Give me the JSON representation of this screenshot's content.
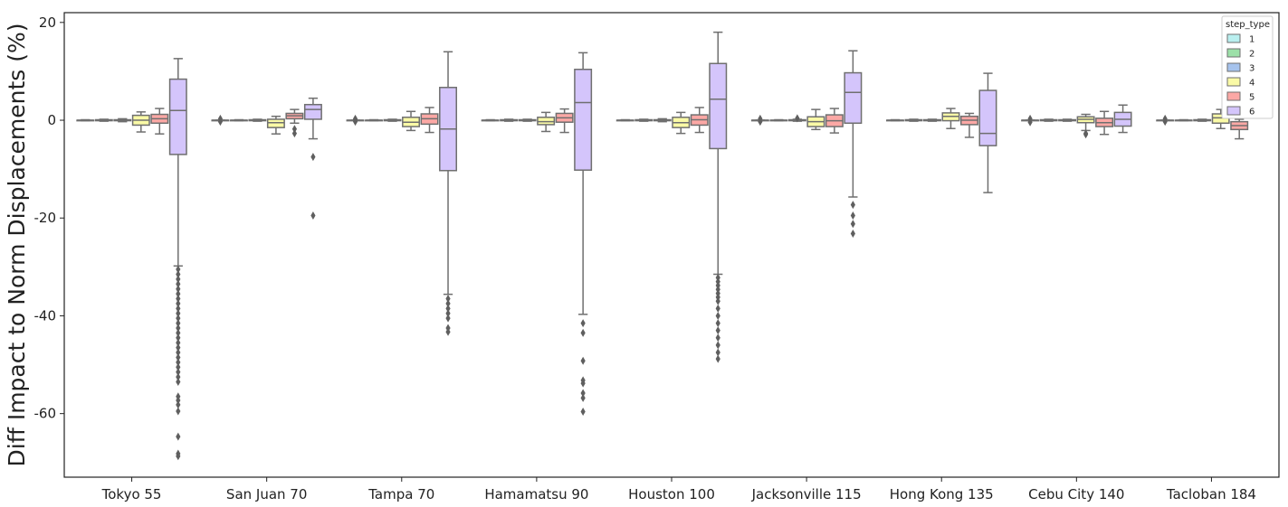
{
  "chart_data": {
    "type": "box",
    "title": "",
    "xlabel": "",
    "ylabel": "Diff Impact to Norm Displacements (%)",
    "ylim": [
      -73,
      22
    ],
    "yticks": [
      20,
      0,
      -20,
      -40,
      -60
    ],
    "categories": [
      "Tokyo 55",
      "San Juan 70",
      "Tampa 70",
      "Hamamatsu 90",
      "Houston 100",
      "Jacksonville 115",
      "Hong Kong 135",
      "Cebu City 140",
      "Tacloban 184"
    ],
    "legend": {
      "title": "step_type",
      "position": "top-right"
    },
    "series": [
      {
        "name": "1",
        "color": "#b9efef",
        "boxes": [
          {
            "q1": 0,
            "med": 0,
            "q3": 0,
            "lo": -0.1,
            "hi": 0.1,
            "fliers": []
          },
          {
            "q1": 0,
            "med": 0,
            "q3": 0,
            "lo": 0,
            "hi": 0,
            "fliers": [
              0.3,
              -0.3
            ]
          },
          {
            "q1": 0,
            "med": 0,
            "q3": 0,
            "lo": 0,
            "hi": 0,
            "fliers": [
              0.3,
              -0.3,
              0.1
            ]
          },
          {
            "q1": 0,
            "med": 0,
            "q3": 0,
            "lo": -0.1,
            "hi": 0.1,
            "fliers": []
          },
          {
            "q1": 0,
            "med": 0,
            "q3": 0,
            "lo": -0.1,
            "hi": 0.1,
            "fliers": []
          },
          {
            "q1": 0,
            "med": 0,
            "q3": 0,
            "lo": 0,
            "hi": 0,
            "fliers": [
              0.3,
              -0.3
            ]
          },
          {
            "q1": 0,
            "med": 0,
            "q3": 0,
            "lo": -0.1,
            "hi": 0.1,
            "fliers": []
          },
          {
            "q1": 0,
            "med": 0,
            "q3": 0,
            "lo": 0,
            "hi": 0,
            "fliers": [
              0.3,
              -0.4
            ]
          },
          {
            "q1": 0,
            "med": 0,
            "q3": 0,
            "lo": 0,
            "hi": 0,
            "fliers": [
              0.3,
              -0.3
            ]
          }
        ]
      },
      {
        "name": "2",
        "color": "#9ce0a8",
        "boxes": [
          {
            "q1": -0.1,
            "med": 0,
            "q3": 0.1,
            "lo": -0.2,
            "hi": 0.2,
            "fliers": []
          },
          {
            "q1": 0,
            "med": 0,
            "q3": 0,
            "lo": -0.1,
            "hi": 0.1,
            "fliers": []
          },
          {
            "q1": 0,
            "med": 0,
            "q3": 0,
            "lo": -0.1,
            "hi": 0.1,
            "fliers": []
          },
          {
            "q1": -0.1,
            "med": 0,
            "q3": 0.1,
            "lo": -0.2,
            "hi": 0.2,
            "fliers": []
          },
          {
            "q1": -0.1,
            "med": 0,
            "q3": 0.1,
            "lo": -0.2,
            "hi": 0.2,
            "fliers": []
          },
          {
            "q1": 0,
            "med": 0,
            "q3": 0,
            "lo": -0.1,
            "hi": 0.1,
            "fliers": []
          },
          {
            "q1": -0.1,
            "med": 0,
            "q3": 0.1,
            "lo": -0.2,
            "hi": 0.2,
            "fliers": []
          },
          {
            "q1": -0.1,
            "med": 0,
            "q3": 0.1,
            "lo": -0.2,
            "hi": 0.2,
            "fliers": []
          },
          {
            "q1": 0,
            "med": 0,
            "q3": 0,
            "lo": -0.1,
            "hi": 0.1,
            "fliers": []
          }
        ]
      },
      {
        "name": "3",
        "color": "#a6c3ed",
        "boxes": [
          {
            "q1": -0.1,
            "med": 0,
            "q3": 0.1,
            "lo": -0.3,
            "hi": 0.3,
            "fliers": []
          },
          {
            "q1": -0.1,
            "med": 0,
            "q3": 0.1,
            "lo": -0.2,
            "hi": 0.2,
            "fliers": []
          },
          {
            "q1": -0.1,
            "med": 0,
            "q3": 0.1,
            "lo": -0.2,
            "hi": 0.2,
            "fliers": []
          },
          {
            "q1": -0.1,
            "med": 0,
            "q3": 0.1,
            "lo": -0.2,
            "hi": 0.2,
            "fliers": []
          },
          {
            "q1": -0.1,
            "med": 0,
            "q3": 0.1,
            "lo": -0.3,
            "hi": 0.3,
            "fliers": []
          },
          {
            "q1": -0.1,
            "med": 0,
            "q3": 0.1,
            "lo": -0.2,
            "hi": 0.2,
            "fliers": [
              0.4
            ]
          },
          {
            "q1": -0.1,
            "med": 0,
            "q3": 0.1,
            "lo": -0.2,
            "hi": 0.2,
            "fliers": []
          },
          {
            "q1": -0.1,
            "med": 0,
            "q3": 0.1,
            "lo": -0.2,
            "hi": 0.2,
            "fliers": []
          },
          {
            "q1": -0.1,
            "med": 0,
            "q3": 0.1,
            "lo": -0.2,
            "hi": 0.2,
            "fliers": []
          }
        ]
      },
      {
        "name": "4",
        "color": "#fafaa6",
        "boxes": [
          {
            "q1": -1,
            "med": 0,
            "q3": 1,
            "lo": -2.4,
            "hi": 1.7,
            "fliers": []
          },
          {
            "q1": -1.5,
            "med": -0.5,
            "q3": 0.2,
            "lo": -2.8,
            "hi": 0.8,
            "fliers": []
          },
          {
            "q1": -1.3,
            "med": -0.4,
            "q3": 0.6,
            "lo": -2.1,
            "hi": 1.8,
            "fliers": []
          },
          {
            "q1": -0.9,
            "med": -0.3,
            "q3": 0.6,
            "lo": -2.3,
            "hi": 1.6,
            "fliers": []
          },
          {
            "q1": -1.5,
            "med": -0.5,
            "q3": 0.6,
            "lo": -2.7,
            "hi": 1.6,
            "fliers": []
          },
          {
            "q1": -1.3,
            "med": -0.3,
            "q3": 0.7,
            "lo": -1.9,
            "hi": 2.2,
            "fliers": []
          },
          {
            "q1": -0.1,
            "med": 0.8,
            "q3": 1.5,
            "lo": -1.7,
            "hi": 2.4,
            "fliers": []
          },
          {
            "q1": -0.5,
            "med": 0.2,
            "q3": 0.7,
            "lo": -2.1,
            "hi": 1.2,
            "fliers": [
              -2.7,
              -2.9
            ]
          },
          {
            "q1": -0.6,
            "med": 0.5,
            "q3": 1.3,
            "lo": -1.7,
            "hi": 2.2,
            "fliers": []
          }
        ]
      },
      {
        "name": "5",
        "color": "#fca8a5",
        "boxes": [
          {
            "q1": -0.6,
            "med": 0.3,
            "q3": 1.2,
            "lo": -2.8,
            "hi": 2.4,
            "fliers": []
          },
          {
            "q1": 0.3,
            "med": 0.9,
            "q3": 1.4,
            "lo": -0.6,
            "hi": 2.2,
            "fliers": [
              -1.8,
              -2.7
            ]
          },
          {
            "q1": -0.8,
            "med": 0.3,
            "q3": 1.3,
            "lo": -2.5,
            "hi": 2.6,
            "fliers": []
          },
          {
            "q1": -0.4,
            "med": 0.5,
            "q3": 1.4,
            "lo": -2.5,
            "hi": 2.3,
            "fliers": []
          },
          {
            "q1": -1,
            "med": 0.1,
            "q3": 1.1,
            "lo": -2.5,
            "hi": 2.6,
            "fliers": []
          },
          {
            "q1": -1.3,
            "med": -0.1,
            "q3": 1.1,
            "lo": -2.6,
            "hi": 2.4,
            "fliers": []
          },
          {
            "q1": -0.9,
            "med": 0,
            "q3": 0.8,
            "lo": -3.5,
            "hi": 1.4,
            "fliers": []
          },
          {
            "q1": -1.3,
            "med": -0.5,
            "q3": 0.4,
            "lo": -2.9,
            "hi": 1.8,
            "fliers": []
          },
          {
            "q1": -1.9,
            "med": -1.1,
            "q3": -0.3,
            "lo": -3.8,
            "hi": 0.2,
            "fliers": []
          }
        ]
      },
      {
        "name": "6",
        "color": "#d4c5fb",
        "boxes": [
          {
            "q1": -7,
            "med": 2,
            "q3": 8.4,
            "lo": -29.8,
            "hi": 12.6,
            "fliers": [
              -30.5,
              -31.5,
              -32.5,
              -33.5,
              -34.5,
              -35.5,
              -36.5,
              -37.5,
              -38.5,
              -39.5,
              -40.5,
              -41.5,
              -42.5,
              -43.5,
              -44.5,
              -45.5,
              -46.5,
              -47.5,
              -48.5,
              -49.5,
              -50.5,
              -51.5,
              -52.5,
              -53.5,
              -56.5,
              -57.3,
              -58.2,
              -59.5,
              -64.7,
              -68.2,
              -68.7
            ]
          },
          {
            "q1": 0.2,
            "med": 2.2,
            "q3": 3.2,
            "lo": -3.8,
            "hi": 4.5,
            "fliers": [
              -7.5,
              -19.5
            ]
          },
          {
            "q1": -10.3,
            "med": -1.8,
            "q3": 6.7,
            "lo": -35.6,
            "hi": 14,
            "fliers": [
              -36.5,
              -37.5,
              -38.5,
              -39.5,
              -40.5,
              -42.5,
              -43.3
            ]
          },
          {
            "q1": -10.2,
            "med": 3.6,
            "q3": 10.4,
            "lo": -39.7,
            "hi": 13.8,
            "fliers": [
              -41.5,
              -43.5,
              -49.2,
              -53.2,
              -53.8,
              -55.8,
              -56.8,
              -59.6
            ]
          },
          {
            "q1": -5.8,
            "med": 4.3,
            "q3": 11.6,
            "lo": -31.5,
            "hi": 18,
            "fliers": [
              -32.2,
              -33,
              -33.8,
              -34.6,
              -35.4,
              -36.2,
              -37,
              -38.5,
              -40,
              -41.5,
              -43,
              -44.5,
              -46,
              -47.5,
              -48.8
            ]
          },
          {
            "q1": -0.6,
            "med": 5.7,
            "q3": 9.7,
            "lo": -15.7,
            "hi": 14.2,
            "fliers": [
              -17.3,
              -19.5,
              -21.2,
              -23.2
            ]
          },
          {
            "q1": -5.2,
            "med": -2.7,
            "q3": 6.1,
            "lo": -14.8,
            "hi": 9.6,
            "fliers": []
          },
          {
            "q1": -1.2,
            "med": 0.2,
            "q3": 1.6,
            "lo": -2.5,
            "hi": 3.1,
            "fliers": []
          },
          null
        ]
      }
    ]
  }
}
